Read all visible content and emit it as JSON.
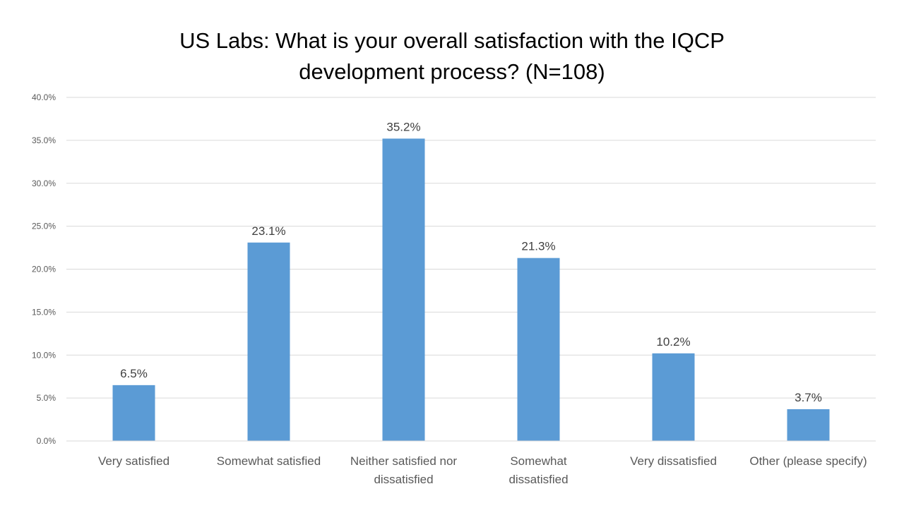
{
  "chart_data": {
    "type": "bar",
    "title_lines": [
      "US Labs: What is your overall satisfaction with the IQCP",
      "development process? (N=108)"
    ],
    "categories": [
      [
        "Very satisfied"
      ],
      [
        "Somewhat satisfied"
      ],
      [
        "Neither satisfied nor",
        "dissatisfied"
      ],
      [
        "Somewhat",
        "dissatisfied"
      ],
      [
        "Very dissatisfied"
      ],
      [
        "Other (please specify)"
      ]
    ],
    "values": [
      6.5,
      23.1,
      35.2,
      21.3,
      10.2,
      3.7
    ],
    "data_labels": [
      "6.5%",
      "23.1%",
      "35.2%",
      "21.3%",
      "10.2%",
      "3.7%"
    ],
    "ylim": [
      0,
      40
    ],
    "yticks": [
      "0.0%",
      "5.0%",
      "10.0%",
      "15.0%",
      "20.0%",
      "25.0%",
      "30.0%",
      "35.0%",
      "40.0%"
    ],
    "grid": true,
    "bar_color": "#5b9bd5"
  }
}
